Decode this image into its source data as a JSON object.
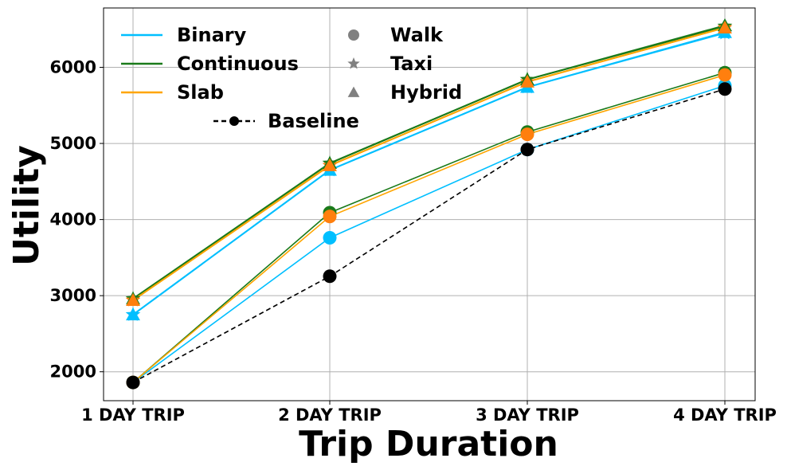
{
  "chart_data": {
    "type": "line",
    "title": "",
    "xlabel": "Trip Duration",
    "ylabel": "Utility",
    "categories": [
      "1 DAY TRIP",
      "2 DAY TRIP",
      "3 DAY TRIP",
      "4 DAY TRIP"
    ],
    "ylim": [
      1620,
      6780
    ],
    "yticks": [
      2000,
      3000,
      4000,
      5000,
      6000
    ],
    "grid": true,
    "legend_placement": "top-left",
    "series": [
      {
        "name": "Baseline",
        "mode": "Walk",
        "color": "#000000",
        "linestyle": "dashed",
        "marker": "circle",
        "values": [
          1860,
          3255,
          4920,
          5715
        ]
      },
      {
        "name": "Binary",
        "mode": "Walk",
        "color": "#00bfff",
        "linestyle": "solid",
        "marker": "circle",
        "values": [
          1860,
          3760,
          4920,
          5760
        ]
      },
      {
        "name": "Continuous",
        "mode": "Walk",
        "color": "#1a7a1a",
        "linestyle": "solid",
        "marker": "circle",
        "values": [
          1860,
          4090,
          5150,
          5930
        ]
      },
      {
        "name": "Slab",
        "mode": "Walk",
        "color": "#ffa500",
        "linestyle": "solid",
        "marker": "circle",
        "values": [
          1860,
          4040,
          5120,
          5900
        ]
      },
      {
        "name": "Binary",
        "mode": "Taxi",
        "color": "#00bfff",
        "linestyle": "solid",
        "marker": "star",
        "values": [
          2750,
          4650,
          5740,
          6450
        ]
      },
      {
        "name": "Continuous",
        "mode": "Taxi",
        "color": "#1a7a1a",
        "linestyle": "solid",
        "marker": "star",
        "values": [
          2960,
          4740,
          5840,
          6540
        ]
      },
      {
        "name": "Slab",
        "mode": "Taxi",
        "color": "#ffa500",
        "linestyle": "solid",
        "marker": "star",
        "values": [
          2940,
          4710,
          5810,
          6520
        ]
      },
      {
        "name": "Binary",
        "mode": "Hybrid",
        "color": "#00bfff",
        "linestyle": "solid",
        "marker": "triangle",
        "values": [
          2750,
          4650,
          5740,
          6460
        ]
      },
      {
        "name": "Continuous",
        "mode": "Hybrid",
        "color": "#1a7a1a",
        "linestyle": "solid",
        "marker": "triangle",
        "values": [
          2960,
          4740,
          5840,
          6550
        ]
      },
      {
        "name": "Slab",
        "mode": "Hybrid",
        "color": "#ffa500",
        "linestyle": "solid",
        "marker": "triangle",
        "values": [
          2940,
          4710,
          5810,
          6520
        ]
      }
    ],
    "legend": {
      "lines": [
        {
          "label": "Binary",
          "color": "#00bfff"
        },
        {
          "label": "Continuous",
          "color": "#1a7a1a"
        },
        {
          "label": "Slab",
          "color": "#ffa500"
        }
      ],
      "markers": [
        {
          "label": "Walk",
          "marker": "circle",
          "color": "#808080"
        },
        {
          "label": "Taxi",
          "marker": "star",
          "color": "#808080"
        },
        {
          "label": "Hybrid",
          "marker": "triangle",
          "color": "#808080"
        }
      ],
      "baseline": {
        "label": "Baseline",
        "color": "#000000"
      }
    },
    "marker_fill_colors": {
      "#00bfff": "#00bfff",
      "#1a7a1a": "#1a7a1a",
      "#ffa500": "#ff7f0e",
      "#000000": "#000000"
    },
    "grid_color": "#b0b0b0"
  }
}
